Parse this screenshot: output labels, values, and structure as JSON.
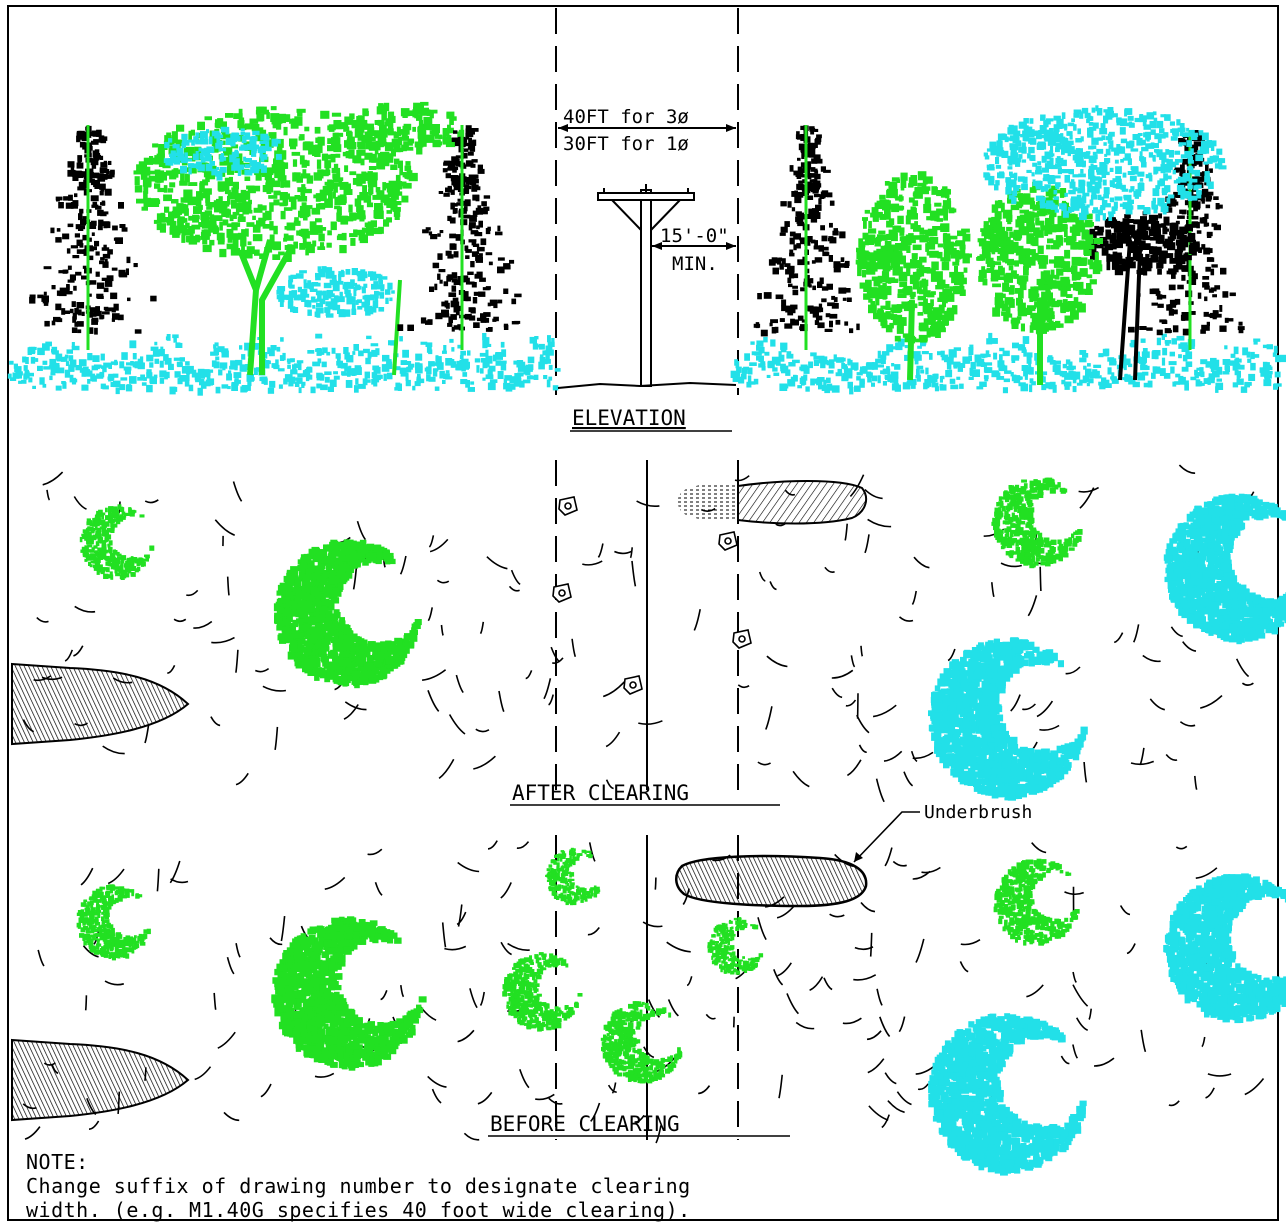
{
  "labels": {
    "dim_3phase": "40FT for 3ø",
    "dim_1phase": "30FT for 1ø",
    "dim_min_value": "15'-0\"",
    "dim_min_label": "MIN.",
    "elevation_title": "ELEVATION",
    "after_title": "AFTER CLEARING",
    "before_title": "BEFORE CLEARING",
    "underbrush": "Underbrush"
  },
  "note": {
    "heading": "NOTE:",
    "line1": "Change suffix of drawing number to designate clearing",
    "line2": "width. (e.g. M1.40G specifies 40 foot wide clearing)."
  },
  "colors": {
    "conifer": "#000000",
    "deciduous": "#22e022",
    "undergrowth": "#22e0e8",
    "linework": "#000000"
  }
}
